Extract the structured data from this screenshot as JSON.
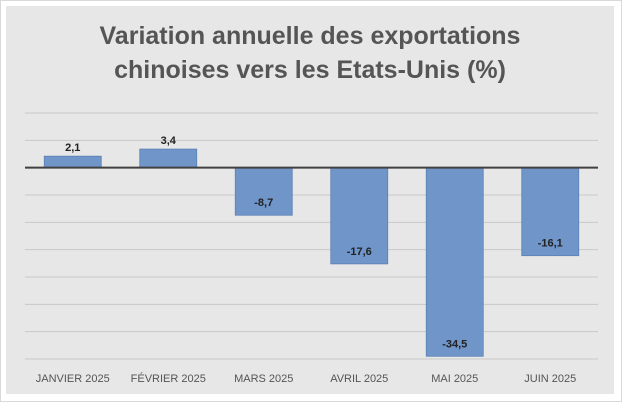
{
  "chart_data": {
    "type": "bar",
    "title_lines": [
      "Variation annuelle des exportations",
      "chinoises vers les Etats-Unis (%)"
    ],
    "categories": [
      "JANVIER 2025",
      "FÉVRIER 2025",
      "MARS 2025",
      "AVRIL 2025",
      "MAI 2025",
      "JUIN 2025"
    ],
    "values": [
      2.1,
      3.4,
      -8.7,
      -17.6,
      -34.5,
      -16.1
    ],
    "data_labels": [
      "2,1",
      "3,4",
      "-8,7",
      "-17,6",
      "-34,5",
      "-16,1"
    ],
    "ylim": [
      -35,
      10
    ],
    "gridline_step": 5,
    "grid": true,
    "axis_labels_visible": false,
    "colors": {
      "bar": "#6f95c9",
      "bar_border": "#5b80b5",
      "panel": "#e7e7e7",
      "gridline": "#c8c8c8",
      "zero_line": "#404040",
      "title": "#555555",
      "label": "#222222",
      "category_label": "#555555"
    }
  }
}
